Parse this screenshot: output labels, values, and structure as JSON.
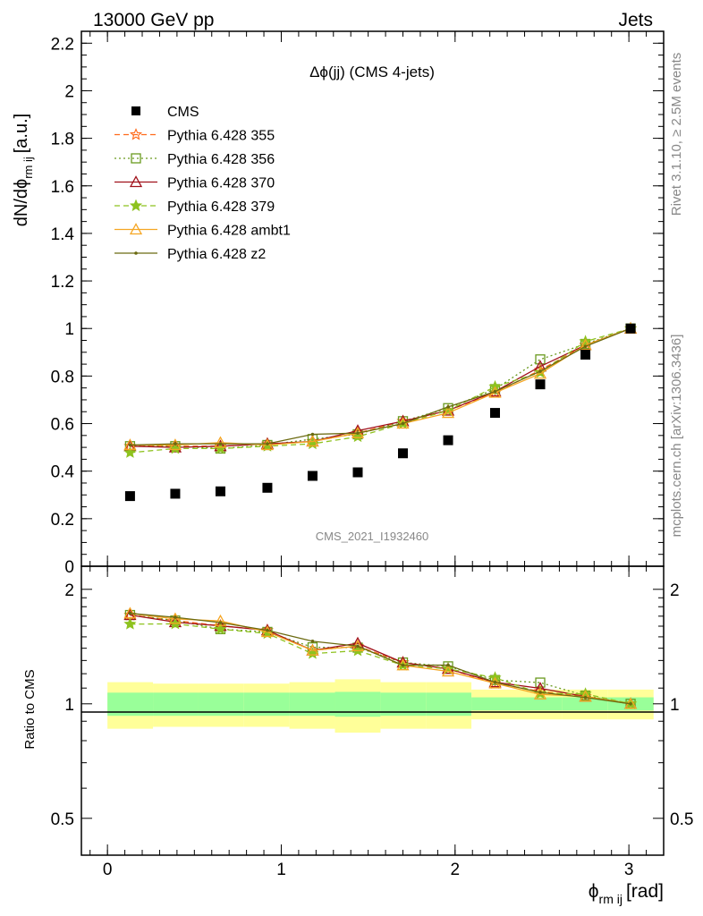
{
  "header": {
    "left_label": "13000 GeV pp",
    "right_label": "Jets"
  },
  "chart_data": {
    "type": "line",
    "title": "Δϕ(jj) (CMS 4-jets)",
    "watermark": "CMS_2021_I1932460",
    "side_label_top": "Rivet 3.1.10, ≥ 2.5M events",
    "side_label_bottom": "mcplots.cern.ch [arXiv:1306.3436]",
    "xlabel_main": "ϕ",
    "xlabel_sub": "rm ij",
    "xlabel_unit": "[rad]",
    "ylabel_main": "dN/dϕ",
    "ylabel_sub": "rm ij",
    "ylabel_unit": "[a.u.]",
    "ratio_ylabel": "Ratio to CMS",
    "xlim": [
      -0.15,
      3.2
    ],
    "ylim": [
      0,
      2.25
    ],
    "ratio_ylim": [
      0.4,
      2.3
    ],
    "ratio_log": true,
    "x_ticks": [
      "0",
      "1",
      "2",
      "3"
    ],
    "y_ticks": [
      "0",
      "0.2",
      "0.4",
      "0.6",
      "0.8",
      "1",
      "1.2",
      "1.4",
      "1.6",
      "1.8",
      "2",
      "2.2"
    ],
    "ratio_ticks": [
      "0.5",
      "1",
      "2"
    ],
    "legend_position": "top-left",
    "x": [
      0.13,
      0.39,
      0.65,
      0.92,
      1.18,
      1.44,
      1.7,
      1.96,
      2.23,
      2.49,
      2.75,
      3.01
    ],
    "bin_edges": [
      0,
      0.262,
      0.524,
      0.785,
      1.047,
      1.309,
      1.571,
      1.833,
      2.094,
      2.356,
      2.618,
      2.88,
      3.142
    ],
    "data": {
      "name": "CMS",
      "values": [
        0.295,
        0.305,
        0.315,
        0.33,
        0.38,
        0.395,
        0.475,
        0.53,
        0.645,
        0.765,
        0.89,
        1.0
      ],
      "ratio_band_inner": [
        0.07,
        0.07,
        0.07,
        0.07,
        0.07,
        0.075,
        0.07,
        0.07,
        0.04,
        0.04,
        0.04,
        0.04
      ],
      "ratio_band_outer": [
        0.14,
        0.13,
        0.13,
        0.13,
        0.14,
        0.16,
        0.14,
        0.14,
        0.09,
        0.09,
        0.09,
        0.09
      ]
    },
    "series": [
      {
        "name": "Pythia 6.428 355",
        "color": "#ff6a1a",
        "dash": "6,4",
        "marker": "star-open",
        "values": [
          0.505,
          0.505,
          0.505,
          0.515,
          0.525,
          0.56,
          0.61,
          0.655,
          0.73,
          0.825,
          0.93,
          1.0
        ]
      },
      {
        "name": "Pythia 6.428 356",
        "color": "#6a9a1f",
        "dash": "2,3",
        "marker": "square-open",
        "values": [
          0.505,
          0.505,
          0.495,
          0.51,
          0.535,
          0.555,
          0.61,
          0.665,
          0.745,
          0.87,
          0.935,
          1.0
        ]
      },
      {
        "name": "Pythia 6.428 370",
        "color": "#a0101a",
        "dash": "",
        "marker": "triangle-open",
        "values": [
          0.505,
          0.5,
          0.505,
          0.515,
          0.525,
          0.57,
          0.61,
          0.655,
          0.735,
          0.84,
          0.93,
          1.0
        ]
      },
      {
        "name": "Pythia 6.428 379",
        "color": "#8ec21f",
        "dash": "6,4",
        "marker": "star-solid",
        "values": [
          0.478,
          0.495,
          0.495,
          0.505,
          0.515,
          0.545,
          0.6,
          0.655,
          0.755,
          0.815,
          0.945,
          1.0
        ]
      },
      {
        "name": "Pythia 6.428 ambt1",
        "color": "#f5a623",
        "dash": "",
        "marker": "triangle-open",
        "values": [
          0.51,
          0.51,
          0.52,
          0.51,
          0.525,
          0.56,
          0.6,
          0.645,
          0.73,
          0.81,
          0.93,
          1.0
        ]
      },
      {
        "name": "Pythia 6.428 z2",
        "color": "#6b6a10",
        "dash": "",
        "marker": "dot",
        "values": [
          0.51,
          0.515,
          0.515,
          0.515,
          0.555,
          0.56,
          0.6,
          0.67,
          0.735,
          0.82,
          0.925,
          1.0
        ]
      }
    ]
  }
}
